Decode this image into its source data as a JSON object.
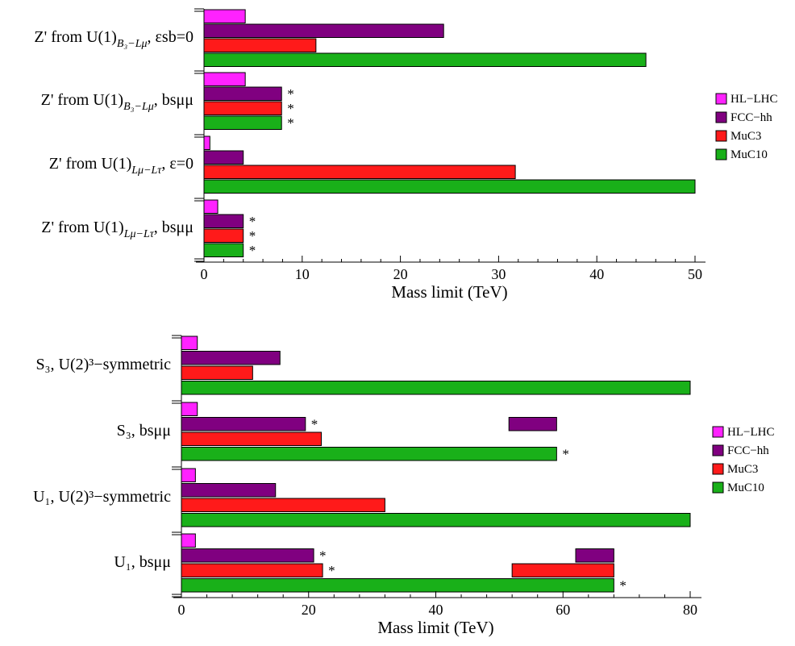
{
  "colors": {
    "HL-LHC": "#ff22ff",
    "FCC-hh": "#800080",
    "MuC3": "#ff1a1a",
    "MuC10": "#19b019"
  },
  "chart_data": [
    {
      "type": "bar",
      "orientation": "horizontal",
      "xlabel": "Mass limit (TeV)",
      "xlim": [
        0,
        50
      ],
      "xticks": [
        "0",
        "10",
        "20",
        "30",
        "40",
        "50"
      ],
      "legend_placement": "right",
      "legend": [
        "HL−LHC",
        "FCC−hh",
        "MuC3",
        "MuC10"
      ],
      "categories": [
        {
          "label": "Z' from U(1)",
          "sub": "B₃−Lμ",
          "suffix": ", εsb=0"
        },
        {
          "label": "Z' from U(1)",
          "sub": "B₃−Lμ",
          "suffix": ", bsμμ"
        },
        {
          "label": "Z' from U(1)",
          "sub": "Lμ−Lτ",
          "suffix": ", ε=0"
        },
        {
          "label": "Z' from U(1)",
          "sub": "Lμ−Lτ",
          "suffix": ", bsμμ"
        }
      ],
      "series": [
        {
          "name": "HL−LHC",
          "key": "HL-LHC",
          "values": [
            [
              0,
              4.2
            ],
            [
              0,
              4.2
            ],
            [
              0,
              0.6
            ],
            [
              0,
              1.4
            ]
          ]
        },
        {
          "name": "FCC−hh",
          "key": "FCC-hh",
          "values": [
            [
              0,
              24.4
            ],
            [
              0,
              7.9
            ],
            [
              0,
              4.0
            ],
            [
              0,
              4.0
            ]
          ]
        },
        {
          "name": "MuC3",
          "key": "MuC3",
          "values": [
            [
              0,
              11.4
            ],
            [
              0,
              7.9
            ],
            [
              0,
              31.7
            ],
            [
              0,
              4.0
            ]
          ]
        },
        {
          "name": "MuC10",
          "key": "MuC10",
          "values": [
            [
              0,
              45.0
            ],
            [
              0,
              7.9
            ],
            [
              0,
              50.0
            ],
            [
              0,
              4.0
            ]
          ]
        }
      ],
      "stars": [
        {
          "category": 1,
          "series": 1,
          "text": "*"
        },
        {
          "category": 1,
          "series": 2,
          "text": "*"
        },
        {
          "category": 1,
          "series": 3,
          "text": "*"
        },
        {
          "category": 3,
          "series": 1,
          "text": "*"
        },
        {
          "category": 3,
          "series": 2,
          "text": "*"
        },
        {
          "category": 3,
          "series": 3,
          "text": "*"
        }
      ]
    },
    {
      "type": "bar",
      "orientation": "horizontal",
      "xlabel": "Mass limit (TeV)",
      "xlim": [
        0,
        80
      ],
      "xticks": [
        "0",
        "20",
        "40",
        "60",
        "80"
      ],
      "legend_placement": "right",
      "legend": [
        "HL−LHC",
        "FCC−hh",
        "MuC3",
        "MuC10"
      ],
      "categories": [
        {
          "label": "S₃, U(2)³−symmetric"
        },
        {
          "label": "S₃, bsμμ"
        },
        {
          "label": "U₁, U(2)³−symmetric"
        },
        {
          "label": "U₁, bsμμ"
        }
      ],
      "series": [
        {
          "name": "HL−LHC",
          "key": "HL-LHC",
          "values": [
            [
              0,
              2.5
            ],
            [
              0,
              2.5
            ],
            [
              0,
              2.2
            ],
            [
              0,
              2.2
            ]
          ]
        },
        {
          "name": "FCC−hh",
          "key": "FCC-hh",
          "values": [
            [
              0,
              15.5
            ],
            [
              0,
              19.5
            ],
            [
              0,
              14.8
            ],
            [
              0,
              20.8
            ]
          ]
        },
        {
          "name": "MuC3",
          "key": "MuC3",
          "values": [
            [
              0,
              11.2
            ],
            [
              0,
              22.0
            ],
            [
              0,
              32.0
            ],
            [
              0,
              22.2
            ]
          ]
        },
        {
          "name": "MuC10",
          "key": "MuC10",
          "values": [
            [
              0,
              80.0
            ],
            [
              0,
              59.0
            ],
            [
              0,
              80.0
            ],
            [
              0,
              68.0
            ]
          ]
        }
      ],
      "extra_segments": [
        {
          "category": 1,
          "series": 1,
          "values": [
            51.5,
            59.0
          ]
        },
        {
          "category": 3,
          "series": 1,
          "values": [
            62.0,
            68.0
          ]
        },
        {
          "category": 3,
          "series": 2,
          "values": [
            52.0,
            68.0
          ]
        }
      ],
      "stars": [
        {
          "category": 1,
          "series": 1,
          "text": "*"
        },
        {
          "category": 1,
          "series": 3,
          "text": "*"
        },
        {
          "category": 3,
          "series": 1,
          "text": "*"
        },
        {
          "category": 3,
          "series": 2,
          "text": "*"
        },
        {
          "category": 3,
          "series": 3,
          "text": "*"
        }
      ]
    }
  ]
}
